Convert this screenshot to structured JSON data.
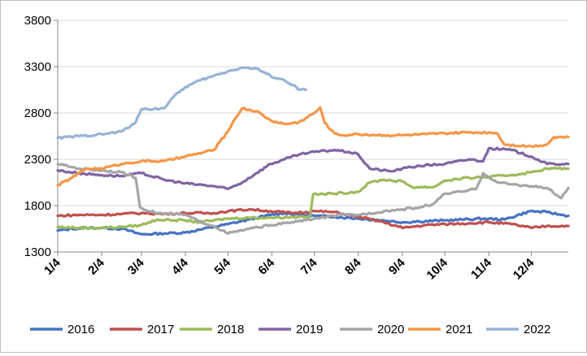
{
  "chart_data": {
    "type": "line",
    "ylim": [
      1300,
      3800
    ],
    "y_ticks": [
      "3800",
      "3300",
      "2800",
      "2300",
      "1800",
      "1300"
    ],
    "x_ticks": [
      "1/4",
      "2/4",
      "3/4",
      "4/4",
      "5/4",
      "6/4",
      "7/4",
      "8/4",
      "9/4",
      "10/4",
      "11/4",
      "12/4"
    ],
    "grid": "horizontal",
    "legend": "bottom",
    "x_domain_days": [
      0,
      360
    ],
    "series": [
      {
        "name": "2016",
        "color": "#4472c4",
        "points": [
          [
            0,
            1530
          ],
          [
            10,
            1550
          ],
          [
            20,
            1560
          ],
          [
            31,
            1560
          ],
          [
            45,
            1550
          ],
          [
            59,
            1490
          ],
          [
            75,
            1500
          ],
          [
            90,
            1510
          ],
          [
            100,
            1540
          ],
          [
            110,
            1570
          ],
          [
            120,
            1600
          ],
          [
            135,
            1650
          ],
          [
            150,
            1700
          ],
          [
            160,
            1720
          ],
          [
            170,
            1700
          ],
          [
            181,
            1690
          ],
          [
            195,
            1680
          ],
          [
            212,
            1660
          ],
          [
            230,
            1640
          ],
          [
            243,
            1620
          ],
          [
            255,
            1630
          ],
          [
            273,
            1640
          ],
          [
            285,
            1650
          ],
          [
            300,
            1660
          ],
          [
            315,
            1650
          ],
          [
            333,
            1740
          ],
          [
            345,
            1730
          ],
          [
            355,
            1700
          ],
          [
            360,
            1690
          ]
        ]
      },
      {
        "name": "2017",
        "color": "#c0504d",
        "points": [
          [
            0,
            1690
          ],
          [
            15,
            1700
          ],
          [
            31,
            1700
          ],
          [
            45,
            1710
          ],
          [
            59,
            1720
          ],
          [
            75,
            1710
          ],
          [
            90,
            1720
          ],
          [
            110,
            1720
          ],
          [
            120,
            1740
          ],
          [
            135,
            1760
          ],
          [
            150,
            1740
          ],
          [
            165,
            1720
          ],
          [
            181,
            1740
          ],
          [
            195,
            1730
          ],
          [
            212,
            1680
          ],
          [
            230,
            1620
          ],
          [
            243,
            1560
          ],
          [
            260,
            1590
          ],
          [
            273,
            1600
          ],
          [
            290,
            1610
          ],
          [
            304,
            1620
          ],
          [
            320,
            1600
          ],
          [
            334,
            1560
          ],
          [
            345,
            1580
          ],
          [
            360,
            1580
          ]
        ]
      },
      {
        "name": "2018",
        "color": "#9bbb59",
        "points": [
          [
            0,
            1570
          ],
          [
            15,
            1560
          ],
          [
            31,
            1560
          ],
          [
            45,
            1570
          ],
          [
            59,
            1590
          ],
          [
            70,
            1650
          ],
          [
            90,
            1640
          ],
          [
            100,
            1620
          ],
          [
            110,
            1640
          ],
          [
            120,
            1660
          ],
          [
            135,
            1670
          ],
          [
            150,
            1670
          ],
          [
            170,
            1680
          ],
          [
            178,
            1690
          ],
          [
            180,
            1920
          ],
          [
            195,
            1930
          ],
          [
            212,
            1950
          ],
          [
            220,
            2050
          ],
          [
            230,
            2080
          ],
          [
            243,
            2060
          ],
          [
            250,
            2000
          ],
          [
            265,
            2000
          ],
          [
            273,
            2070
          ],
          [
            290,
            2100
          ],
          [
            304,
            2110
          ],
          [
            320,
            2130
          ],
          [
            334,
            2160
          ],
          [
            345,
            2200
          ],
          [
            360,
            2200
          ]
        ]
      },
      {
        "name": "2019",
        "color": "#8064a2",
        "points": [
          [
            0,
            2180
          ],
          [
            15,
            2150
          ],
          [
            31,
            2130
          ],
          [
            45,
            2120
          ],
          [
            59,
            2150
          ],
          [
            75,
            2080
          ],
          [
            90,
            2040
          ],
          [
            110,
            2010
          ],
          [
            120,
            1980
          ],
          [
            130,
            2050
          ],
          [
            140,
            2150
          ],
          [
            150,
            2250
          ],
          [
            160,
            2300
          ],
          [
            170,
            2350
          ],
          [
            181,
            2380
          ],
          [
            195,
            2400
          ],
          [
            205,
            2380
          ],
          [
            212,
            2350
          ],
          [
            220,
            2200
          ],
          [
            235,
            2170
          ],
          [
            243,
            2200
          ],
          [
            255,
            2230
          ],
          [
            273,
            2250
          ],
          [
            290,
            2300
          ],
          [
            300,
            2280
          ],
          [
            304,
            2420
          ],
          [
            320,
            2400
          ],
          [
            334,
            2330
          ],
          [
            345,
            2250
          ],
          [
            360,
            2250
          ]
        ]
      },
      {
        "name": "2020",
        "color": "#a5a5a5",
        "points": [
          [
            0,
            2250
          ],
          [
            15,
            2200
          ],
          [
            31,
            2180
          ],
          [
            45,
            2160
          ],
          [
            55,
            2100
          ],
          [
            58,
            1780
          ],
          [
            70,
            1720
          ],
          [
            90,
            1700
          ],
          [
            100,
            1630
          ],
          [
            110,
            1580
          ],
          [
            120,
            1500
          ],
          [
            135,
            1550
          ],
          [
            150,
            1590
          ],
          [
            165,
            1620
          ],
          [
            181,
            1660
          ],
          [
            200,
            1700
          ],
          [
            212,
            1700
          ],
          [
            230,
            1740
          ],
          [
            243,
            1760
          ],
          [
            255,
            1780
          ],
          [
            265,
            1820
          ],
          [
            273,
            1930
          ],
          [
            285,
            1950
          ],
          [
            295,
            1980
          ],
          [
            300,
            2150
          ],
          [
            310,
            2050
          ],
          [
            320,
            2030
          ],
          [
            334,
            2010
          ],
          [
            345,
            1990
          ],
          [
            355,
            1880
          ],
          [
            360,
            1990
          ]
        ]
      },
      {
        "name": "2021",
        "color": "#f79646",
        "points": [
          [
            0,
            2020
          ],
          [
            10,
            2100
          ],
          [
            20,
            2200
          ],
          [
            31,
            2200
          ],
          [
            45,
            2250
          ],
          [
            59,
            2280
          ],
          [
            75,
            2280
          ],
          [
            90,
            2330
          ],
          [
            110,
            2400
          ],
          [
            120,
            2600
          ],
          [
            125,
            2740
          ],
          [
            130,
            2850
          ],
          [
            140,
            2820
          ],
          [
            150,
            2720
          ],
          [
            160,
            2680
          ],
          [
            170,
            2700
          ],
          [
            181,
            2800
          ],
          [
            185,
            2860
          ],
          [
            188,
            2700
          ],
          [
            195,
            2580
          ],
          [
            200,
            2560
          ],
          [
            212,
            2570
          ],
          [
            230,
            2560
          ],
          [
            243,
            2560
          ],
          [
            260,
            2570
          ],
          [
            273,
            2580
          ],
          [
            290,
            2590
          ],
          [
            304,
            2590
          ],
          [
            310,
            2580
          ],
          [
            315,
            2460
          ],
          [
            334,
            2440
          ],
          [
            345,
            2460
          ],
          [
            350,
            2540
          ],
          [
            360,
            2540
          ]
        ]
      },
      {
        "name": "2022",
        "color": "#95b3d7",
        "points": [
          [
            0,
            2530
          ],
          [
            15,
            2550
          ],
          [
            31,
            2570
          ],
          [
            45,
            2600
          ],
          [
            55,
            2700
          ],
          [
            59,
            2840
          ],
          [
            75,
            2850
          ],
          [
            80,
            2950
          ],
          [
            90,
            3080
          ],
          [
            100,
            3150
          ],
          [
            110,
            3200
          ],
          [
            120,
            3250
          ],
          [
            130,
            3290
          ],
          [
            140,
            3280
          ],
          [
            150,
            3200
          ],
          [
            160,
            3150
          ],
          [
            166,
            3100
          ],
          [
            170,
            3050
          ],
          [
            175,
            3050
          ]
        ]
      }
    ]
  }
}
